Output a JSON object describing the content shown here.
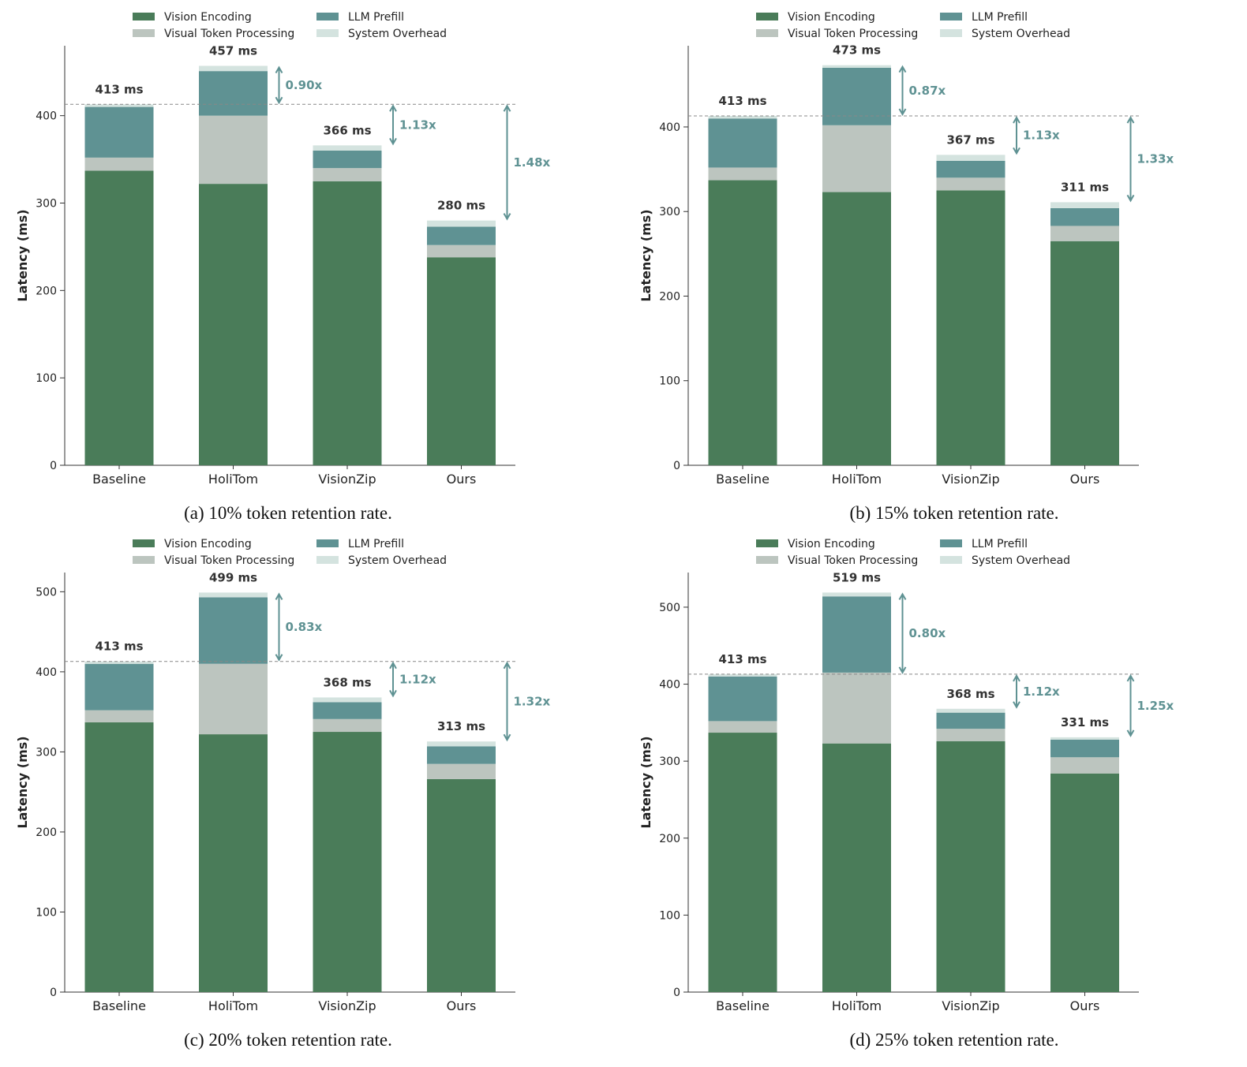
{
  "colors": {
    "vision_encoding": "#4a7c59",
    "visual_token_processing": "#bcc5bf",
    "llm_prefill": "#5f9293",
    "system_overhead": "#d4e3df",
    "speedup_arrow": "#5f9293",
    "baseline_line": "#888888"
  },
  "legend": [
    "Vision Encoding",
    "Visual Token Processing",
    "LLM Prefill",
    "System Overhead"
  ],
  "ylabel": "Latency (ms)",
  "categories": [
    "Baseline",
    "HoliTom",
    "VisionZip",
    "Ours"
  ],
  "chart_data": [
    {
      "type": "bar",
      "stacked": true,
      "caption": "(a) 10% token retention rate.",
      "categories": [
        "Baseline",
        "HoliTom",
        "VisionZip",
        "Ours"
      ],
      "ylabel": "Latency (ms)",
      "ylim": [
        0,
        480
      ],
      "yticks": [
        0,
        100,
        200,
        300,
        400
      ],
      "series": [
        {
          "name": "Vision Encoding",
          "values": [
            337,
            322,
            325,
            238
          ]
        },
        {
          "name": "Visual Token Processing",
          "values": [
            15,
            78,
            15,
            14
          ]
        },
        {
          "name": "LLM Prefill",
          "values": [
            58,
            51,
            20,
            21
          ]
        },
        {
          "name": "System Overhead",
          "values": [
            3,
            6,
            6,
            7
          ]
        }
      ],
      "totals": [
        "413 ms",
        "457 ms",
        "366 ms",
        "280 ms"
      ],
      "baseline_value": 413,
      "speedups": [
        "",
        "0.90x",
        "1.13x",
        "1.48x"
      ]
    },
    {
      "type": "bar",
      "stacked": true,
      "caption": "(b) 15% token retention rate.",
      "categories": [
        "Baseline",
        "HoliTom",
        "VisionZip",
        "Ours"
      ],
      "ylabel": "Latency (ms)",
      "ylim": [
        0,
        496
      ],
      "yticks": [
        0,
        100,
        200,
        300,
        400
      ],
      "series": [
        {
          "name": "Vision Encoding",
          "values": [
            337,
            323,
            325,
            265
          ]
        },
        {
          "name": "Visual Token Processing",
          "values": [
            15,
            79,
            15,
            18
          ]
        },
        {
          "name": "LLM Prefill",
          "values": [
            58,
            68,
            20,
            21
          ]
        },
        {
          "name": "System Overhead",
          "values": [
            3,
            3,
            7,
            7
          ]
        }
      ],
      "totals": [
        "413 ms",
        "473 ms",
        "367 ms",
        "311 ms"
      ],
      "baseline_value": 413,
      "speedups": [
        "",
        "0.87x",
        "1.13x",
        "1.33x"
      ]
    },
    {
      "type": "bar",
      "stacked": true,
      "caption": "(c) 20% token retention rate.",
      "categories": [
        "Baseline",
        "HoliTom",
        "VisionZip",
        "Ours"
      ],
      "ylabel": "Latency (ms)",
      "ylim": [
        0,
        524
      ],
      "yticks": [
        0,
        100,
        200,
        300,
        400,
        500
      ],
      "series": [
        {
          "name": "Vision Encoding",
          "values": [
            337,
            322,
            325,
            266
          ]
        },
        {
          "name": "Visual Token Processing",
          "values": [
            15,
            88,
            16,
            19
          ]
        },
        {
          "name": "LLM Prefill",
          "values": [
            58,
            83,
            21,
            22
          ]
        },
        {
          "name": "System Overhead",
          "values": [
            3,
            6,
            6,
            6
          ]
        }
      ],
      "totals": [
        "413 ms",
        "499 ms",
        "368 ms",
        "313 ms"
      ],
      "baseline_value": 413,
      "speedups": [
        "",
        "0.83x",
        "1.12x",
        "1.32x"
      ]
    },
    {
      "type": "bar",
      "stacked": true,
      "caption": "(d) 25% token retention rate.",
      "categories": [
        "Baseline",
        "HoliTom",
        "VisionZip",
        "Ours"
      ],
      "ylabel": "Latency (ms)",
      "ylim": [
        0,
        545
      ],
      "yticks": [
        0,
        100,
        200,
        300,
        400,
        500
      ],
      "series": [
        {
          "name": "Vision Encoding",
          "values": [
            337,
            323,
            326,
            284
          ]
        },
        {
          "name": "Visual Token Processing",
          "values": [
            15,
            92,
            16,
            21
          ]
        },
        {
          "name": "LLM Prefill",
          "values": [
            58,
            99,
            21,
            23
          ]
        },
        {
          "name": "System Overhead",
          "values": [
            3,
            5,
            5,
            3
          ]
        }
      ],
      "totals": [
        "413 ms",
        "519 ms",
        "368 ms",
        "331 ms"
      ],
      "baseline_value": 413,
      "speedups": [
        "",
        "0.80x",
        "1.12x",
        "1.25x"
      ]
    }
  ]
}
